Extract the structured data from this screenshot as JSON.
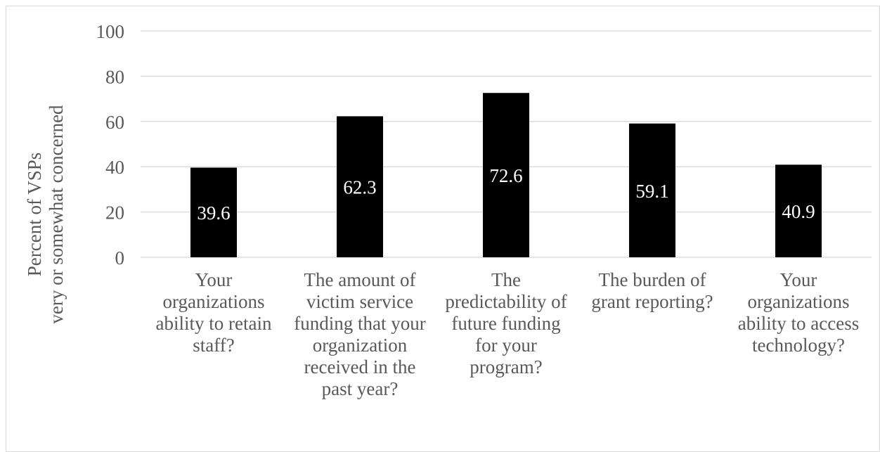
{
  "chart_data": {
    "type": "bar",
    "title": "",
    "xlabel": "",
    "ylabel_lines": [
      "Percent of VSPs",
      "very or somewhat concerned"
    ],
    "ylim": [
      0,
      100
    ],
    "yticks": [
      0,
      20,
      40,
      60,
      80,
      100
    ],
    "grid": true,
    "legend": "none",
    "categories": [
      [
        "Your",
        "organizations",
        "ability to retain",
        "staff?"
      ],
      [
        "The amount of",
        "victim service",
        "funding that your",
        "organization",
        "received in the",
        "past year?"
      ],
      [
        "The",
        "predictability of",
        "future funding",
        "for your",
        "program?"
      ],
      [
        "The burden of",
        "grant reporting?"
      ],
      [
        "Your",
        "organizations",
        "ability to access",
        "technology?"
      ]
    ],
    "values": [
      39.6,
      62.3,
      72.6,
      59.1,
      40.9
    ],
    "data_labels": [
      "39.6",
      "62.3",
      "72.6",
      "59.1",
      "40.9"
    ],
    "colors": {
      "bar": "#000000",
      "label": "#ffffff",
      "grid": "#d9d9d9",
      "text": "#595959"
    }
  }
}
